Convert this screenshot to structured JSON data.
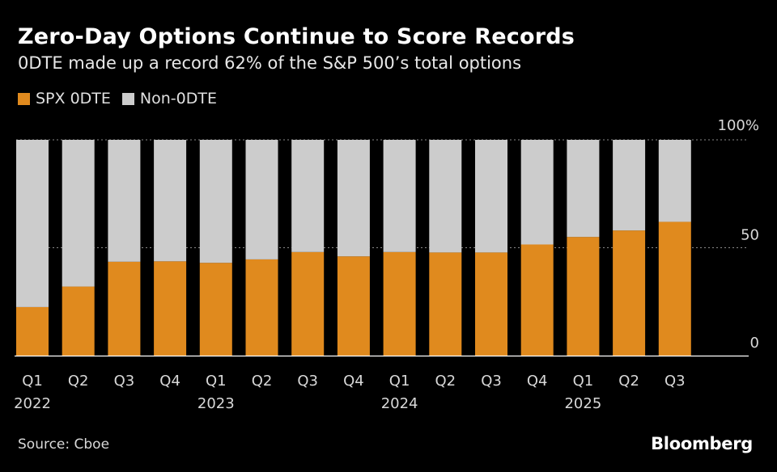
{
  "header": {
    "title": "Zero-Day Options Continue to Score Records",
    "subtitle": "0DTE made up a record 62% of the S&P 500’s total options"
  },
  "legend": {
    "items": [
      {
        "label": "SPX 0DTE",
        "color": "#e08a1e"
      },
      {
        "label": "Non-0DTE",
        "color": "#cccccc"
      }
    ]
  },
  "footer": {
    "source": "Source: Cboe",
    "brand": "Bloomberg"
  },
  "chart_data": {
    "type": "bar",
    "stacked": true,
    "title": "Zero-Day Options Continue to Score Records",
    "categories": [
      "Q1",
      "Q2",
      "Q3",
      "Q4",
      "Q1",
      "Q2",
      "Q3",
      "Q4",
      "Q1",
      "Q2",
      "Q3",
      "Q4",
      "Q1",
      "Q2",
      "Q3"
    ],
    "year_labels": [
      {
        "index": 0,
        "label": "2022"
      },
      {
        "index": 4,
        "label": "2023"
      },
      {
        "index": 8,
        "label": "2024"
      },
      {
        "index": 12,
        "label": "2025"
      }
    ],
    "series": [
      {
        "name": "SPX 0DTE",
        "color": "#e08a1e",
        "values": [
          22.5,
          32,
          43.5,
          43.7,
          43,
          44.6,
          48,
          46,
          48,
          47.8,
          47.8,
          51.5,
          55,
          58,
          62
        ]
      },
      {
        "name": "Non-0DTE",
        "color": "#cccccc",
        "values": [
          77.5,
          68,
          56.5,
          56.3,
          57,
          55.4,
          52,
          54,
          52,
          52.2,
          52.2,
          48.5,
          45,
          42,
          38
        ]
      }
    ],
    "ylim": [
      0,
      100
    ],
    "yticks": [
      0,
      50,
      100
    ],
    "ytick_labels": [
      "0",
      "50",
      "100%"
    ],
    "y_axis_side": "right",
    "grid": true,
    "xlabel": "",
    "ylabel": ""
  }
}
